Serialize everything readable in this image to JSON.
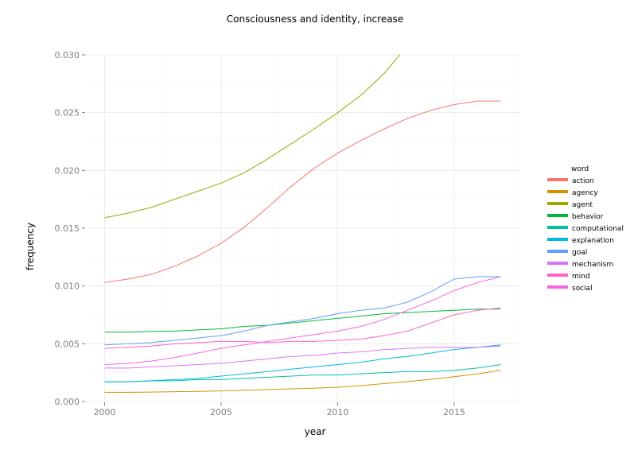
{
  "chart_data": {
    "type": "line",
    "title": "Consciousness and identity, increase",
    "xlabel": "year",
    "ylabel": "frequency",
    "xlim": [
      1999.2,
      2017.8
    ],
    "ylim": [
      0,
      0.03
    ],
    "xticks": [
      2000,
      2005,
      2010,
      2015
    ],
    "xtick_labels": [
      "2000",
      "2005",
      "2010",
      "2015"
    ],
    "yticks": [
      0,
      0.005,
      0.01,
      0.015,
      0.02,
      0.025,
      0.03
    ],
    "ytick_labels": [
      "0.000",
      "0.005",
      "0.010",
      "0.015",
      "0.020",
      "0.025",
      "0.030"
    ],
    "grid": true,
    "legend": {
      "title": "word",
      "placement": "right"
    },
    "x": [
      2000,
      2001,
      2002,
      2003,
      2004,
      2005,
      2006,
      2007,
      2008,
      2009,
      2010,
      2011,
      2012,
      2013,
      2014,
      2015,
      2016,
      2017
    ],
    "series": [
      {
        "name": "action",
        "color": "#F8766D",
        "values": [
          0.0103,
          0.0106,
          0.011,
          0.0117,
          0.0126,
          0.0137,
          0.0151,
          0.0168,
          0.0186,
          0.0202,
          0.0215,
          0.0226,
          0.0236,
          0.0245,
          0.0252,
          0.0257,
          0.026,
          0.026
        ]
      },
      {
        "name": "agency",
        "color": "#D39200",
        "values": [
          0.0008,
          0.0008,
          0.00082,
          0.00085,
          0.00088,
          0.00092,
          0.00098,
          0.00104,
          0.0011,
          0.00115,
          0.00124,
          0.00138,
          0.00156,
          0.00173,
          0.00193,
          0.00215,
          0.0024,
          0.0027
        ]
      },
      {
        "name": "agent",
        "color": "#93AA00",
        "values": [
          0.0159,
          0.0163,
          0.0168,
          0.0175,
          0.0182,
          0.0189,
          0.0198,
          0.021,
          0.0223,
          0.0236,
          0.025,
          0.0265,
          0.0284,
          0.0308,
          null,
          null,
          null,
          null
        ]
      },
      {
        "name": "behavior",
        "color": "#00BA38",
        "values": [
          0.006,
          0.006,
          0.00606,
          0.0061,
          0.0062,
          0.0063,
          0.0065,
          0.0066,
          0.0068,
          0.007,
          0.0072,
          0.0074,
          0.0076,
          0.0077,
          0.0078,
          0.0079,
          0.008,
          0.008
        ]
      },
      {
        "name": "computational",
        "color": "#00C19F",
        "values": [
          0.0017,
          0.0017,
          0.0018,
          0.0018,
          0.0019,
          0.0019,
          0.002,
          0.0021,
          0.0022,
          0.0023,
          0.0023,
          0.0024,
          0.0025,
          0.0026,
          0.0026,
          0.0027,
          0.0029,
          0.0032
        ]
      },
      {
        "name": "explanation",
        "color": "#00B9E3",
        "values": [
          0.0017,
          0.0017,
          0.0018,
          0.0019,
          0.002,
          0.0022,
          0.0024,
          0.0026,
          0.0028,
          0.003,
          0.0032,
          0.0034,
          0.0037,
          0.0039,
          0.0042,
          0.0045,
          0.0047,
          0.0049
        ]
      },
      {
        "name": "goal",
        "color": "#619CFF",
        "values": [
          0.0049,
          0.005,
          0.0051,
          0.0053,
          0.0055,
          0.0057,
          0.0061,
          0.0066,
          0.0069,
          0.0072,
          0.0076,
          0.0079,
          0.0081,
          0.0086,
          0.0095,
          0.0106,
          0.0108,
          0.0108
        ]
      },
      {
        "name": "mechanism",
        "color": "#DB72FB",
        "values": [
          0.0029,
          0.0029,
          0.003,
          0.0031,
          0.0032,
          0.0033,
          0.0035,
          0.0037,
          0.0039,
          0.004,
          0.0042,
          0.0043,
          0.0045,
          0.0046,
          0.0047,
          0.0047,
          0.0047,
          0.0048
        ]
      },
      {
        "name": "mind",
        "color": "#FF61C3",
        "values": [
          0.0046,
          0.0047,
          0.0048,
          0.005,
          0.0051,
          0.0052,
          0.0052,
          0.0051,
          0.0052,
          0.0052,
          0.0053,
          0.0054,
          0.0057,
          0.0061,
          0.0068,
          0.0075,
          0.0079,
          0.0081
        ]
      },
      {
        "name": "social",
        "color": "#F564E3",
        "values": [
          0.0032,
          0.0033,
          0.0035,
          0.0038,
          0.0042,
          0.0046,
          0.0049,
          0.0052,
          0.0055,
          0.0058,
          0.0061,
          0.0065,
          0.0071,
          0.0079,
          0.0087,
          0.0096,
          0.0103,
          0.0108
        ]
      }
    ]
  }
}
